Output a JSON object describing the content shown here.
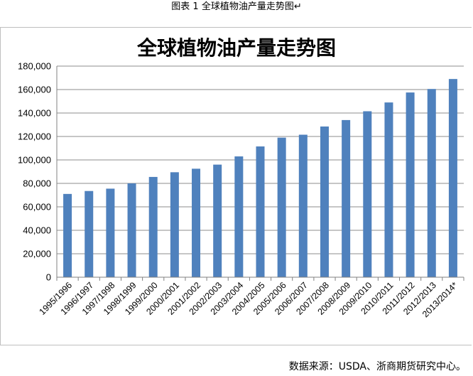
{
  "caption": "图表 1  全球植物油产量走势图↵",
  "source": "数据来源：USDA、浙商期货研究中心。",
  "chart_data": {
    "type": "bar",
    "title": "全球植物油产量走势图",
    "xlabel": "",
    "ylabel": "",
    "ylim": [
      0,
      180000
    ],
    "yticks": [
      "0",
      "20,000",
      "40,000",
      "60,000",
      "80,000",
      "100,000",
      "120,000",
      "140,000",
      "160,000",
      "180,000"
    ],
    "grid": true,
    "bar_color": "#4f81bd",
    "categories": [
      "1995/1996",
      "1996/1997",
      "1997/1998",
      "1998/1999",
      "1999/2000",
      "2000/2001",
      "2001/2002",
      "2002/2003",
      "2003/2004",
      "2004/2005",
      "2005/2006",
      "2006/2007",
      "2007/2008",
      "2008/2009",
      "2009/2010",
      "2010/2011",
      "2011/2012",
      "2012/2013",
      "2013/2014*"
    ],
    "values": [
      71000,
      73500,
      75500,
      80000,
      85500,
      89500,
      92500,
      96000,
      103000,
      111500,
      119000,
      121500,
      128500,
      134000,
      141500,
      149000,
      157500,
      160500,
      169000
    ]
  }
}
